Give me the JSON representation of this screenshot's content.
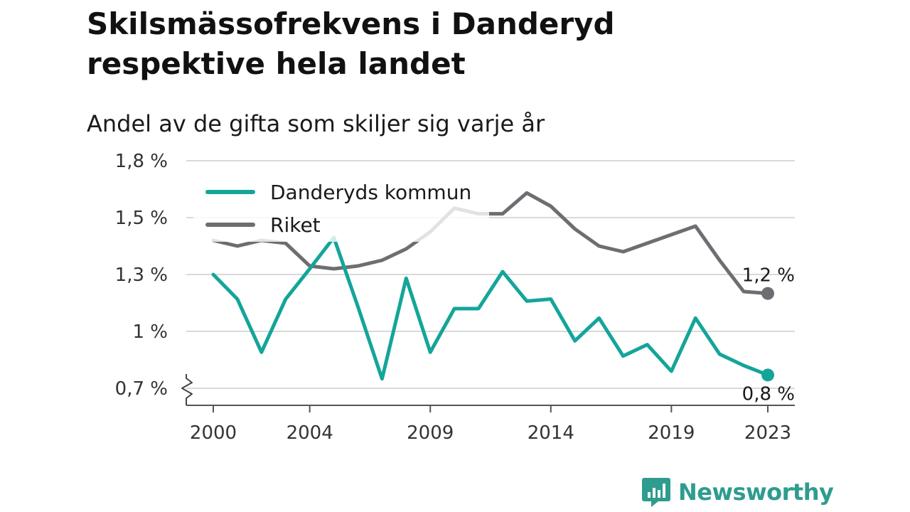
{
  "title": "Skilsmässofrekvens i Danderyd respektive hela landet",
  "subtitle": "Andel av de gifta som skiljer sig varje år",
  "brand": "Newsworthy",
  "colors": {
    "danderyd": "#14a599",
    "riket": "#6e6d72",
    "grid": "#d9d9d9",
    "brand": "#2e9c8f"
  },
  "chart_data": {
    "type": "line",
    "title": "Skilsmässofrekvens i Danderyd respektive hela landet",
    "subtitle": "Andel av de gifta som skiljer sig varje år",
    "x": [
      2000,
      2001,
      2002,
      2003,
      2004,
      2005,
      2006,
      2007,
      2008,
      2009,
      2010,
      2011,
      2012,
      2013,
      2014,
      2015,
      2016,
      2017,
      2018,
      2019,
      2020,
      2021,
      2022,
      2023
    ],
    "x_ticks": [
      2000,
      2004,
      2009,
      2014,
      2019,
      2023
    ],
    "x_tick_labels": [
      "2000",
      "2004",
      "2009",
      "2014",
      "2019",
      "2023"
    ],
    "y_ticks": [
      0.7,
      1.0,
      1.3,
      1.5,
      1.8
    ],
    "y_tick_labels": [
      "0,7 %",
      "1 %",
      "1,3 %",
      "1,5 %",
      "1,8 %"
    ],
    "ylim": [
      0.7,
      1.8
    ],
    "y_axis_break": true,
    "grid": true,
    "legend_position": "top-left",
    "series": [
      {
        "name": "Danderyds kommun",
        "color": "#14a599",
        "values": [
          1.3,
          1.17,
          0.89,
          1.17,
          1.32,
          1.43,
          1.13,
          0.75,
          1.28,
          0.89,
          1.12,
          1.12,
          1.31,
          1.16,
          1.17,
          0.95,
          1.07,
          0.87,
          0.93,
          0.79,
          1.07,
          0.88,
          0.82,
          0.77
        ],
        "end_label": "0,8 %"
      },
      {
        "name": "Riket",
        "color": "#6e6d72",
        "values": [
          1.42,
          1.4,
          1.42,
          1.41,
          1.33,
          1.32,
          1.33,
          1.35,
          1.39,
          1.45,
          1.55,
          1.52,
          1.52,
          1.63,
          1.56,
          1.46,
          1.4,
          1.38,
          1.41,
          1.44,
          1.47,
          1.35,
          1.21,
          1.2
        ],
        "end_label": "1,2 %"
      }
    ]
  }
}
